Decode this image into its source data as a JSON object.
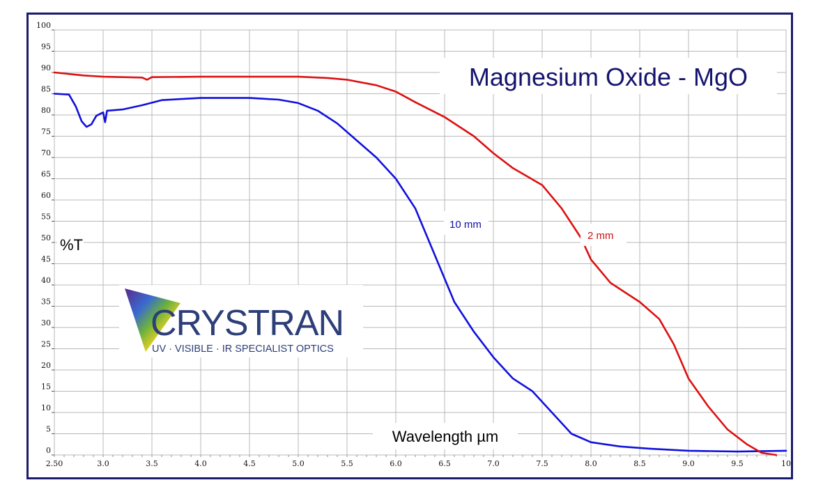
{
  "chart_data": {
    "type": "line",
    "title": "Magnesium Oxide - MgO",
    "xlabel": "Wavelength µm",
    "ylabel": "%T",
    "xlim": [
      2.5,
      10
    ],
    "ylim": [
      0,
      100
    ],
    "grid": true,
    "x_ticks": [
      "2.50",
      "3.0",
      "3.5",
      "4.0",
      "4.5",
      "5.0",
      "5.5",
      "6.0",
      "6.5",
      "7.0",
      "7.5",
      "8.0",
      "8.5",
      "9.0",
      "9.5",
      "10"
    ],
    "y_ticks": [
      "0",
      "5",
      "10",
      "15",
      "20",
      "25",
      "30",
      "35",
      "40",
      "45",
      "50",
      "55",
      "60",
      "65",
      "70",
      "75",
      "80",
      "85",
      "90",
      "95",
      "100"
    ],
    "series": [
      {
        "name": "10 mm",
        "color": "#1010dd",
        "points": [
          [
            2.5,
            85
          ],
          [
            2.65,
            84.8
          ],
          [
            2.72,
            82
          ],
          [
            2.78,
            78.5
          ],
          [
            2.83,
            77.2
          ],
          [
            2.88,
            77.8
          ],
          [
            2.93,
            79.8
          ],
          [
            3.0,
            80.6
          ],
          [
            3.02,
            78.3
          ],
          [
            3.04,
            81
          ],
          [
            3.2,
            81.3
          ],
          [
            3.4,
            82.3
          ],
          [
            3.6,
            83.5
          ],
          [
            4.0,
            84
          ],
          [
            4.5,
            84
          ],
          [
            4.8,
            83.6
          ],
          [
            5.0,
            82.8
          ],
          [
            5.2,
            81
          ],
          [
            5.4,
            78
          ],
          [
            5.6,
            74
          ],
          [
            5.8,
            70
          ],
          [
            6.0,
            65
          ],
          [
            6.2,
            58
          ],
          [
            6.4,
            47
          ],
          [
            6.6,
            36
          ],
          [
            6.8,
            29
          ],
          [
            7.0,
            23
          ],
          [
            7.2,
            18
          ],
          [
            7.4,
            15
          ],
          [
            7.6,
            10
          ],
          [
            7.8,
            5
          ],
          [
            8.0,
            3
          ],
          [
            8.3,
            2
          ],
          [
            8.6,
            1.5
          ],
          [
            9.0,
            1
          ],
          [
            9.5,
            0.8
          ],
          [
            10,
            1
          ]
        ]
      },
      {
        "name": "2 mm",
        "color": "#dd1010",
        "points": [
          [
            2.5,
            90
          ],
          [
            2.8,
            89.3
          ],
          [
            3.0,
            89
          ],
          [
            3.4,
            88.8
          ],
          [
            3.45,
            88.3
          ],
          [
            3.5,
            88.9
          ],
          [
            4.0,
            89
          ],
          [
            4.5,
            89
          ],
          [
            5.0,
            89
          ],
          [
            5.3,
            88.7
          ],
          [
            5.5,
            88.3
          ],
          [
            5.8,
            87
          ],
          [
            6.0,
            85.5
          ],
          [
            6.2,
            83
          ],
          [
            6.5,
            79.5
          ],
          [
            6.8,
            75
          ],
          [
            7.0,
            71
          ],
          [
            7.2,
            67.5
          ],
          [
            7.5,
            63.5
          ],
          [
            7.7,
            58
          ],
          [
            7.9,
            51
          ],
          [
            8.0,
            46
          ],
          [
            8.2,
            40.5
          ],
          [
            8.5,
            36
          ],
          [
            8.7,
            32
          ],
          [
            8.85,
            26
          ],
          [
            9.0,
            18
          ],
          [
            9.2,
            11.5
          ],
          [
            9.4,
            6
          ],
          [
            9.6,
            2.5
          ],
          [
            9.75,
            0.5
          ],
          [
            9.9,
            0
          ]
        ]
      }
    ],
    "annotations": [
      "10 mm",
      "2 mm"
    ]
  },
  "logo": {
    "name": "CRYSTRAN",
    "tagline": "UV · VISIBLE · IR SPECIALIST OPTICS"
  }
}
